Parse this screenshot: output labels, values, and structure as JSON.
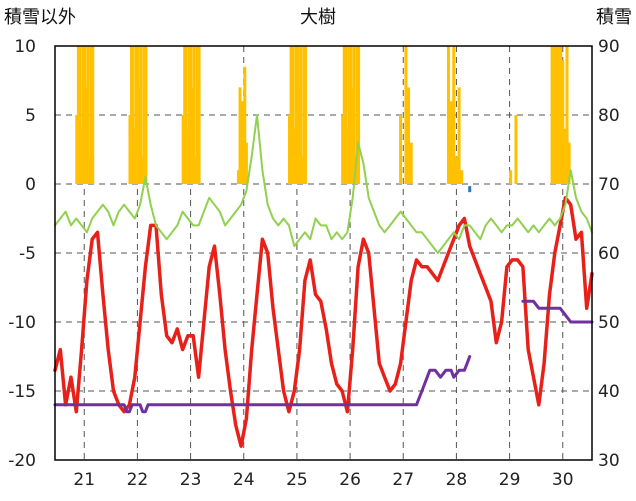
{
  "chart_data": {
    "type": "line",
    "title": "大樹",
    "left_axis_title": "積雪以外",
    "right_axis_title": "積雪",
    "x_categories": [
      "21",
      "22",
      "23",
      "24",
      "25",
      "26",
      "27",
      "28",
      "29",
      "30"
    ],
    "y_left": {
      "range": [
        -20,
        10
      ],
      "ticks": [
        "10",
        "5",
        "0",
        "-5",
        "-10",
        "-15",
        "-20"
      ]
    },
    "y_right": {
      "range": [
        30,
        90
      ],
      "ticks": [
        "90",
        "80",
        "70",
        "60",
        "50",
        "40",
        "30"
      ]
    },
    "grid": "dashed",
    "x_range_days": [
      20.45,
      30.55
    ],
    "colors": {
      "red": "#e8201a",
      "green": "#92d050",
      "orange": "#ffc000",
      "purple": "#7030a0",
      "blue": "#2e75b6",
      "grid": "#555555",
      "frame": "#000000"
    },
    "series": [
      {
        "key": "red",
        "axis": "left",
        "x": [
          20.45,
          20.55,
          20.65,
          20.75,
          20.85,
          20.95,
          21.05,
          21.15,
          21.25,
          21.35,
          21.45,
          21.55,
          21.65,
          21.75,
          21.85,
          21.95,
          22.05,
          22.15,
          22.25,
          22.35,
          22.45,
          22.55,
          22.65,
          22.75,
          22.85,
          22.95,
          23.05,
          23.15,
          23.25,
          23.35,
          23.45,
          23.55,
          23.65,
          23.75,
          23.85,
          23.95,
          24.05,
          24.15,
          24.25,
          24.35,
          24.45,
          24.55,
          24.65,
          24.75,
          24.85,
          24.95,
          25.05,
          25.15,
          25.25,
          25.35,
          25.45,
          25.55,
          25.65,
          25.75,
          25.85,
          25.95,
          26.05,
          26.15,
          26.25,
          26.35,
          26.45,
          26.55,
          26.65,
          26.75,
          26.85,
          26.95,
          27.05,
          27.15,
          27.25,
          27.35,
          27.45,
          27.55,
          27.65,
          27.75,
          27.85,
          27.95,
          28.05,
          28.15,
          28.25,
          28.35,
          28.45,
          28.55,
          28.65,
          28.75,
          28.85,
          28.95,
          29.05,
          29.15,
          29.25,
          29.35,
          29.45,
          29.55,
          29.65,
          29.75,
          29.85,
          29.95,
          30.05,
          30.15,
          30.25,
          30.35,
          30.45,
          30.55
        ],
        "values": [
          -13.5,
          -12,
          -16,
          -14,
          -16.5,
          -12,
          -7,
          -4,
          -3.5,
          -8,
          -12,
          -15,
          -16,
          -16.5,
          -16,
          -14,
          -10,
          -6,
          -3,
          -3,
          -8,
          -11,
          -11.5,
          -10.5,
          -12,
          -11,
          -11,
          -14,
          -10,
          -6,
          -4.5,
          -8,
          -12,
          -15,
          -17.5,
          -19,
          -17,
          -12,
          -8,
          -4,
          -5,
          -9,
          -12,
          -15,
          -16.5,
          -15,
          -12,
          -7,
          -5.5,
          -8,
          -8.5,
          -10.5,
          -13,
          -14.5,
          -15,
          -16.5,
          -12,
          -6,
          -4,
          -5,
          -9,
          -13,
          -14,
          -15,
          -14.5,
          -13,
          -10,
          -7,
          -5.5,
          -6,
          -6,
          -6.5,
          -7,
          -6,
          -5,
          -4,
          -3,
          -2.5,
          -4.5,
          -5.5,
          -6.5,
          -7.5,
          -8.5,
          -11.5,
          -10,
          -6,
          -5.5,
          -5.5,
          -6,
          -12,
          -14,
          -16,
          -13,
          -8,
          -5,
          -3,
          -1,
          -1.5,
          -4,
          -3.5,
          -9,
          -6.5
        ]
      },
      {
        "key": "green",
        "axis": "left",
        "x": [
          20.45,
          20.55,
          20.65,
          20.75,
          20.85,
          20.95,
          21.05,
          21.15,
          21.25,
          21.35,
          21.45,
          21.55,
          21.65,
          21.75,
          21.85,
          21.95,
          22.05,
          22.15,
          22.25,
          22.35,
          22.45,
          22.55,
          22.65,
          22.75,
          22.85,
          22.95,
          23.05,
          23.15,
          23.25,
          23.35,
          23.45,
          23.55,
          23.65,
          23.75,
          23.85,
          23.95,
          24.05,
          24.15,
          24.25,
          24.35,
          24.45,
          24.55,
          24.65,
          24.75,
          24.85,
          24.95,
          25.05,
          25.15,
          25.25,
          25.35,
          25.45,
          25.55,
          25.65,
          25.75,
          25.85,
          25.95,
          26.05,
          26.15,
          26.25,
          26.35,
          26.45,
          26.55,
          26.65,
          26.75,
          26.85,
          26.95,
          27.05,
          27.15,
          27.25,
          27.35,
          27.45,
          27.55,
          27.65,
          27.75,
          27.85,
          27.95,
          28.05,
          28.15,
          28.25,
          28.35,
          28.45,
          28.55,
          28.65,
          28.75,
          28.85,
          28.95,
          29.05,
          29.15,
          29.25,
          29.35,
          29.45,
          29.55,
          29.65,
          29.75,
          29.85,
          29.95,
          30.05,
          30.15,
          30.25,
          30.35,
          30.45,
          30.55
        ],
        "values": [
          -3,
          -2.5,
          -2,
          -3,
          -2.5,
          -3,
          -3.5,
          -2.5,
          -2,
          -1.5,
          -2,
          -3,
          -2,
          -1.5,
          -2,
          -2.5,
          -1.5,
          0.5,
          -1.5,
          -3,
          -3.5,
          -4,
          -3.5,
          -3,
          -2,
          -2.5,
          -3,
          -3,
          -2,
          -1,
          -1.5,
          -2,
          -3,
          -2.5,
          -2,
          -1.5,
          -0.5,
          2,
          5,
          1,
          -1.5,
          -2.5,
          -3,
          -2.5,
          -3,
          -4.5,
          -4,
          -3.5,
          -4,
          -2.5,
          -3,
          -3,
          -4,
          -3.5,
          -4,
          -3.5,
          -1,
          3,
          1.5,
          -1,
          -2,
          -3,
          -3.5,
          -3,
          -2.5,
          -2,
          -2.5,
          -3,
          -3.5,
          -3.5,
          -4,
          -4.5,
          -5,
          -4.5,
          -4,
          -3.5,
          -4,
          -3,
          -3,
          -3.5,
          -4,
          -3,
          -2.5,
          -3,
          -3.5,
          -3,
          -3,
          -2.5,
          -3,
          -3.5,
          -3,
          -3.5,
          -3,
          -2.5,
          -3,
          -2.5,
          -1.5,
          1,
          -1,
          -2,
          -2.5,
          -3.5
        ]
      },
      {
        "key": "purple",
        "axis": "right",
        "x": [
          20.45,
          21.7,
          21.75,
          21.8,
          21.85,
          21.9,
          21.95,
          22.05,
          22.1,
          22.15,
          22.2,
          27.25,
          27.35,
          27.45,
          27.5,
          27.6,
          27.7,
          27.8,
          27.9,
          27.95,
          28.05,
          28.15,
          28.2,
          28.25
        ],
        "values": [
          38,
          38,
          38,
          37,
          37,
          38,
          38,
          38,
          37,
          37,
          38,
          38,
          40,
          42,
          43,
          43,
          42,
          43,
          43,
          42,
          43,
          43,
          44,
          45
        ]
      },
      {
        "key": "purple",
        "axis": "right",
        "x": [
          29.25,
          29.45,
          29.55,
          29.95,
          30.05,
          30.15,
          30.25,
          30.55
        ],
        "values": [
          53,
          53,
          52,
          52,
          51,
          50,
          50,
          50
        ]
      }
    ],
    "orange_bars": {
      "axis": "left",
      "baseline": 0,
      "day_profile_offsets": [
        -0.14,
        -0.11,
        -0.08,
        -0.05,
        -0.02,
        0.01,
        0.04,
        0.07,
        0.1,
        0.13,
        0.16
      ],
      "day_profile_values": [
        5,
        10,
        10,
        4,
        10,
        10,
        7,
        10,
        2,
        10,
        10
      ],
      "full_days": [
        21,
        22,
        23,
        25,
        26
      ],
      "partial_points": [
        {
          "x": 23.9,
          "value": 1
        },
        {
          "x": 23.93,
          "value": 7
        },
        {
          "x": 23.96,
          "value": 2.5
        },
        {
          "x": 23.98,
          "value": 6
        },
        {
          "x": 24.02,
          "value": 8.5
        },
        {
          "x": 24.05,
          "value": 3
        },
        {
          "x": 24.9,
          "value": 5
        },
        {
          "x": 26.95,
          "value": 5
        },
        {
          "x": 27.05,
          "value": 10
        },
        {
          "x": 27.1,
          "value": 7
        },
        {
          "x": 27.15,
          "value": 3
        },
        {
          "x": 27.85,
          "value": 10
        },
        {
          "x": 27.9,
          "value": 6
        },
        {
          "x": 27.95,
          "value": 10
        },
        {
          "x": 28.0,
          "value": 2
        },
        {
          "x": 28.05,
          "value": 7
        },
        {
          "x": 28.1,
          "value": 1
        },
        {
          "x": 29.02,
          "value": 1
        },
        {
          "x": 29.12,
          "value": 5
        },
        {
          "x": 29.8,
          "value": 10
        },
        {
          "x": 29.84,
          "value": 10
        },
        {
          "x": 29.88,
          "value": 10
        },
        {
          "x": 29.92,
          "value": 10
        },
        {
          "x": 29.96,
          "value": 10
        },
        {
          "x": 30.0,
          "value": 9
        },
        {
          "x": 30.04,
          "value": 4
        },
        {
          "x": 30.08,
          "value": 10
        },
        {
          "x": 30.12,
          "value": 3
        }
      ]
    },
    "blue_marks": [
      {
        "axis": "left",
        "x": 28.25,
        "value": -0.3
      }
    ]
  }
}
